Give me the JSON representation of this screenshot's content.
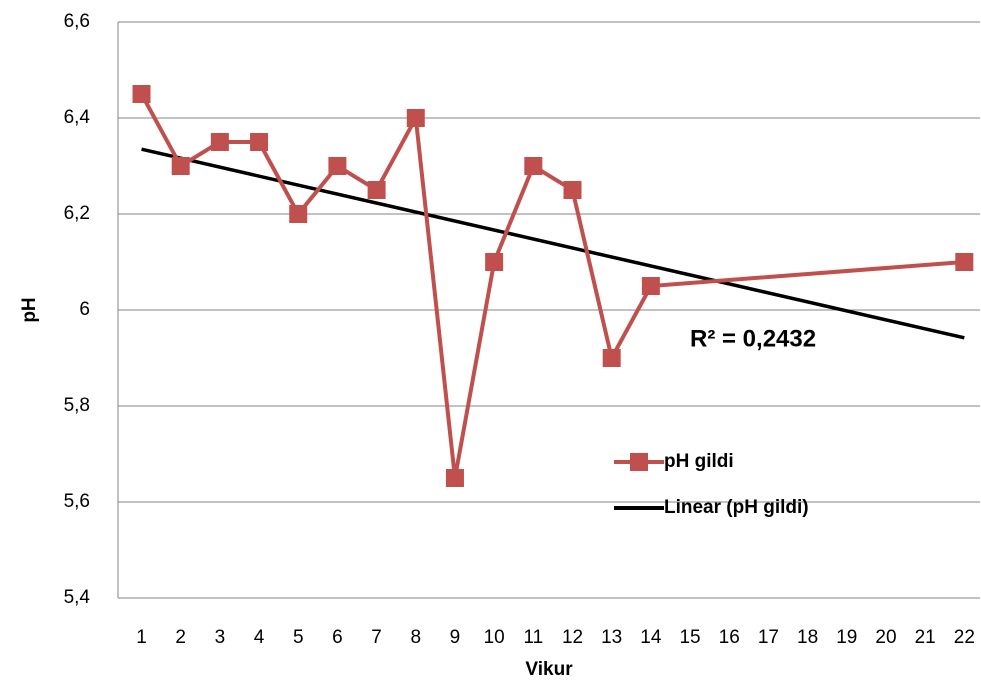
{
  "chart_data": {
    "type": "line",
    "x_label": "Vikur",
    "y_label": "pH",
    "annotation": "R² = 0,2432",
    "series": [
      {
        "name": "pH gildi",
        "color": "#c0504d",
        "marker": "square",
        "x": [
          1,
          2,
          3,
          4,
          5,
          6,
          7,
          8,
          9,
          10,
          11,
          12,
          13,
          14,
          22
        ],
        "values": [
          6.45,
          6.3,
          6.35,
          6.35,
          6.2,
          6.3,
          6.25,
          6.4,
          5.65,
          6.1,
          6.3,
          6.25,
          5.9,
          6.05,
          6.1
        ]
      },
      {
        "name": "Linear (pH gildi)",
        "color": "#000000",
        "x": [
          1,
          22
        ],
        "values": [
          6.335,
          5.942
        ]
      }
    ],
    "xlim": [
      0.4,
      22.4
    ],
    "xticks": [
      1,
      2,
      3,
      4,
      5,
      6,
      7,
      8,
      9,
      10,
      11,
      12,
      13,
      14,
      15,
      16,
      17,
      18,
      19,
      20,
      21,
      22
    ],
    "ylim": [
      5.4,
      6.6
    ],
    "yticks": [
      {
        "value": 5.4,
        "label": "5,4"
      },
      {
        "value": 5.6,
        "label": "5,6"
      },
      {
        "value": 5.8,
        "label": "5,8"
      },
      6,
      {
        "value": 6.2,
        "label": "6,2"
      },
      {
        "value": 6.4,
        "label": "6,4"
      },
      {
        "value": 6.6,
        "label": "6,6"
      }
    ],
    "grid": true
  }
}
